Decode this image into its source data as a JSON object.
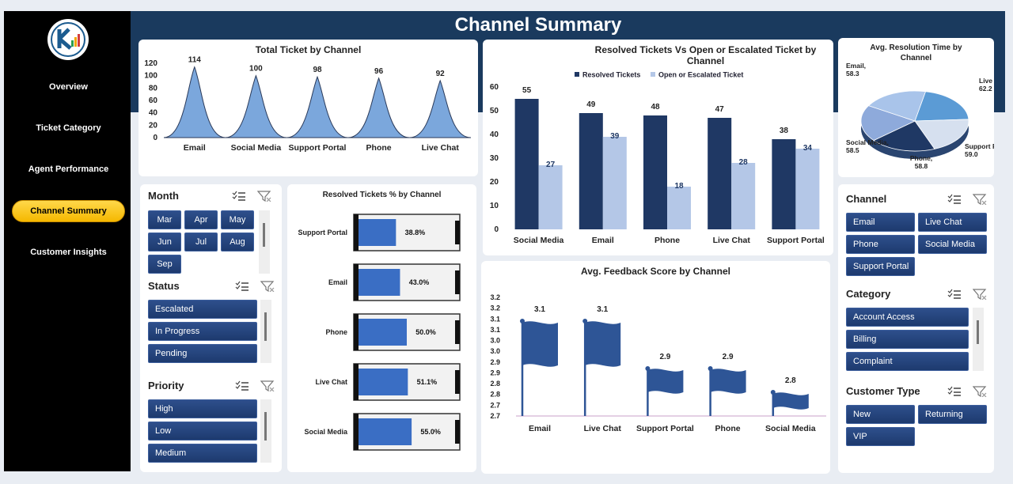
{
  "nav": {
    "items": [
      {
        "label": "Overview"
      },
      {
        "label": "Ticket Category"
      },
      {
        "label": "Agent Performance"
      },
      {
        "label": "Channel Summary"
      },
      {
        "label": "Customer Insights"
      }
    ],
    "active_index": 3
  },
  "page": {
    "title": "Channel Summary"
  },
  "colors": {
    "dark_blue": "#1f3864",
    "light_blue": "#b4c7e7",
    "mid_blue": "#4472c4",
    "accent_yellow": "#ffc000"
  },
  "icons": {
    "multi_select": "multi-select-icon",
    "clear_filter": "clear-filter-icon"
  },
  "chart_data": [
    {
      "type": "bar",
      "title": "Total Ticket by Channel",
      "categories": [
        "Email",
        "Social Media",
        "Support Portal",
        "Phone",
        "Live Chat"
      ],
      "values": [
        114,
        100,
        98,
        96,
        92
      ],
      "ylim": [
        0,
        120
      ],
      "yticks": [
        0,
        20,
        40,
        60,
        80,
        100,
        120
      ]
    },
    {
      "type": "bar",
      "title": "Resolved Tickets Vs Open or Escalated Ticket by Channel",
      "categories": [
        "Social Media",
        "Email",
        "Phone",
        "Live Chat",
        "Support Portal"
      ],
      "series": [
        {
          "name": "Resolved Tickets",
          "values": [
            55,
            49,
            48,
            47,
            38
          ]
        },
        {
          "name": "Open or Escalated Ticket",
          "values": [
            27,
            39,
            18,
            28,
            34
          ]
        }
      ],
      "ylim": [
        0,
        60
      ],
      "yticks": [
        0,
        10,
        20,
        30,
        40,
        50,
        60
      ],
      "legend": "top"
    },
    {
      "type": "pie",
      "title": "Avg. Resolution Time by Channel",
      "slices": [
        {
          "label": "Live Chat,",
          "value_label": "62.2",
          "value": 62.2
        },
        {
          "label": "Support Portal,",
          "value_label": "59.0",
          "value": 59.0
        },
        {
          "label": "Phone,",
          "value_label": "58.8",
          "value": 58.8
        },
        {
          "label": "Social Media,",
          "value_label": "58.5",
          "value": 58.5
        },
        {
          "label": "Email,",
          "value_label": "58.3",
          "value": 58.3
        }
      ]
    },
    {
      "type": "bar",
      "title": "Resolved Tickets % by Channel",
      "categories": [
        "Support Portal",
        "Email",
        "Phone",
        "Live Chat",
        "Social Media"
      ],
      "values": [
        38.8,
        43.0,
        50.0,
        51.1,
        55.0
      ],
      "value_labels": [
        "38.8%",
        "43.0%",
        "50.0%",
        "51.1%",
        "55.0%"
      ]
    },
    {
      "type": "bar",
      "title": "Avg. Feedback Score by Channel",
      "categories": [
        "Email",
        "Live Chat",
        "Support Portal",
        "Phone",
        "Social Media"
      ],
      "values": [
        3.1,
        3.1,
        2.9,
        2.9,
        2.8
      ],
      "value_labels": [
        "3.1",
        "3.1",
        "2.9",
        "2.9",
        "2.8"
      ],
      "ylim": [
        2.7,
        3.2
      ],
      "yticks": [
        "2.7",
        "2.7",
        "2.8",
        "2.8",
        "2.9",
        "2.9",
        "3.0",
        "3.0",
        "3.1",
        "3.1",
        "3.2",
        "3.2"
      ]
    }
  ],
  "slicers": {
    "month": {
      "title": "Month",
      "items": [
        "Mar",
        "Apr",
        "May",
        "Jun",
        "Jul",
        "Aug",
        "Sep"
      ]
    },
    "status": {
      "title": "Status",
      "items": [
        "Escalated",
        "In Progress",
        "Pending"
      ]
    },
    "priority": {
      "title": "Priority",
      "items": [
        "High",
        "Low",
        "Medium"
      ]
    },
    "channel": {
      "title": "Channel",
      "items": [
        "Email",
        "Live Chat",
        "Phone",
        "Social Media",
        "Support Portal"
      ]
    },
    "category": {
      "title": "Category",
      "items": [
        "Account Access",
        "Billing",
        "Complaint"
      ]
    },
    "customer_type": {
      "title": "Customer Type",
      "items": [
        "New",
        "Returning",
        "VIP"
      ]
    }
  }
}
